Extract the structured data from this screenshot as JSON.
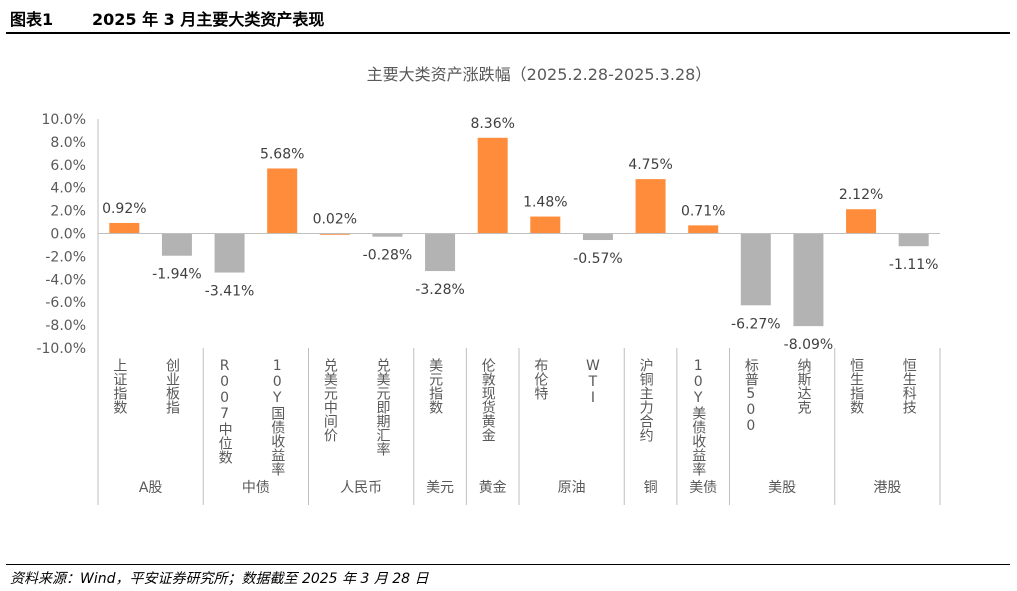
{
  "header": {
    "figure_label": "图表1",
    "figure_title": "2025 年 3 月主要大类资产表现"
  },
  "footer": {
    "source": "资料来源：Wind，平安证券研究所；数据截至 2025 年 3 月 28 日"
  },
  "colors": {
    "positive": "#FF8C3A",
    "negative": "#B3B3B3",
    "axis": "#BFBFBF",
    "text": "#595959"
  },
  "chart_data": {
    "type": "bar",
    "title": "主要大类资产涨跌幅（2025.2.28-2025.3.28）",
    "ylim": [
      -10,
      10
    ],
    "yticks": [
      "10.0%",
      "8.0%",
      "6.0%",
      "4.0%",
      "2.0%",
      "0.0%",
      "-2.0%",
      "-4.0%",
      "-6.0%",
      "-8.0%",
      "-10.0%"
    ],
    "categories": [
      "上证指数",
      "创业板指",
      "R007中位数",
      "10Y国债收益率",
      "兑美元中间价",
      "兑美元即期汇率",
      "美元指数",
      "伦敦现货黄金",
      "布伦特",
      "WTI",
      "沪铜主力合约",
      "10Y美债收益率",
      "标普500",
      "纳斯达克",
      "恒生指数",
      "恒生科技"
    ],
    "values": [
      0.92,
      -1.94,
      -3.41,
      5.68,
      0.02,
      -0.28,
      -3.28,
      8.36,
      1.48,
      -0.57,
      4.75,
      0.71,
      -6.27,
      -8.09,
      2.12,
      -1.11
    ],
    "data_labels": [
      "0.92%",
      "-1.94%",
      "-3.41%",
      "5.68%",
      "0.02%",
      "-0.28%",
      "-3.28%",
      "8.36%",
      "1.48%",
      "-0.57%",
      "4.75%",
      "0.71%",
      "-6.27%",
      "-8.09%",
      "2.12%",
      "-1.11%"
    ],
    "groups": [
      {
        "name": "A股",
        "count": 2
      },
      {
        "name": "中债",
        "count": 2
      },
      {
        "name": "人民币",
        "count": 2
      },
      {
        "name": "美元",
        "count": 1
      },
      {
        "name": "黄金",
        "count": 1
      },
      {
        "name": "原油",
        "count": 2
      },
      {
        "name": "铜",
        "count": 1
      },
      {
        "name": "美债",
        "count": 1
      },
      {
        "name": "美股",
        "count": 2
      },
      {
        "name": "港股",
        "count": 2
      }
    ],
    "grid": false,
    "legend": "none"
  }
}
